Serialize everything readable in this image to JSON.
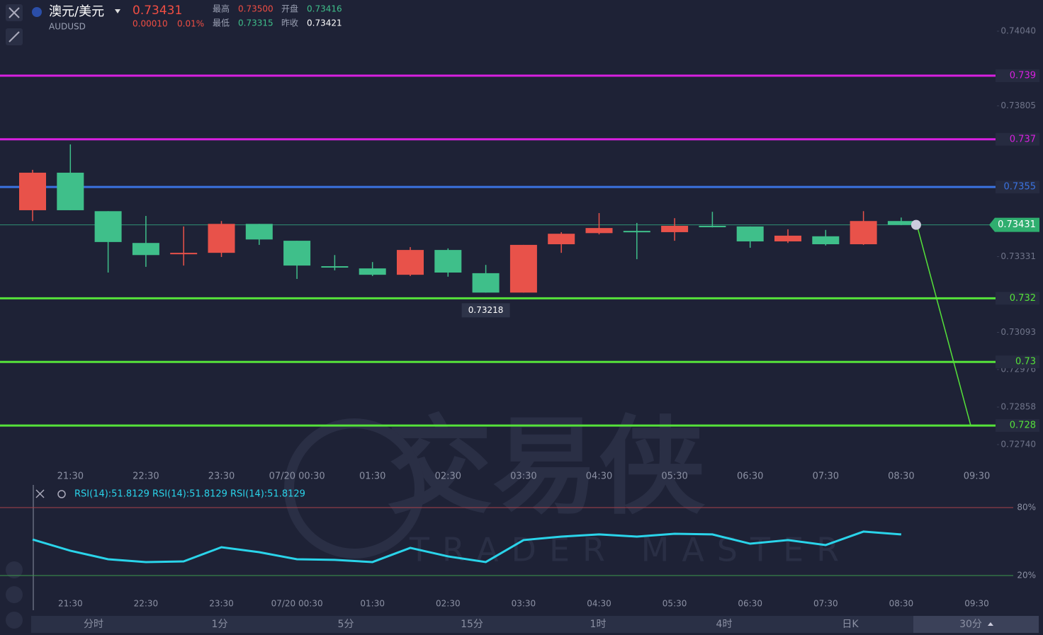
{
  "header": {
    "symbol_name": "澳元/美元",
    "symbol_code": "AUDUSD",
    "price": "0.73431",
    "change": "0.00010",
    "change_pct": "0.01%",
    "high_label": "最高",
    "high": "0.73500",
    "open_label": "开盘",
    "open": "0.73416",
    "low_label": "最低",
    "low": "0.73315",
    "prev_close_label": "昨收",
    "prev_close": "0.73421"
  },
  "watermark": {
    "cn": "交易侠",
    "en": "TRADER MASTER"
  },
  "chart_data": [
    {
      "type": "candlestick",
      "categories": [
        null,
        "21:30",
        null,
        "22:30",
        null,
        "23:30",
        null,
        "07/20 00:30",
        null,
        "01:30",
        null,
        "02:30",
        null,
        "03:30",
        null,
        "04:30",
        null,
        "05:30",
        null,
        "06:30",
        null,
        "07:30",
        null,
        "08:30",
        null,
        "09:30"
      ],
      "open": [
        0.73477,
        0.73595,
        0.73474,
        0.73374,
        0.73341,
        0.73343,
        0.73434,
        0.73381,
        0.73301,
        0.73294,
        0.73274,
        0.73352,
        0.73279,
        0.73218,
        0.7337,
        0.73405,
        0.73412,
        0.73408,
        0.73428,
        0.73426,
        0.73379,
        0.73395,
        0.7337,
        0.73443,
        null,
        null
      ],
      "high": [
        0.73604,
        0.73684,
        0.73474,
        0.73459,
        0.73426,
        0.73443,
        0.73434,
        0.73381,
        0.73336,
        0.73314,
        0.73361,
        0.73357,
        0.73305,
        0.73368,
        0.73408,
        0.73468,
        0.73437,
        0.73452,
        0.73472,
        0.73426,
        0.73417,
        0.73415,
        0.73474,
        0.73454,
        null,
        null
      ],
      "low": [
        0.73443,
        0.73477,
        0.73281,
        0.73299,
        0.73303,
        0.7333,
        0.73368,
        0.73261,
        0.73288,
        0.7327,
        0.7327,
        0.73268,
        0.73218,
        0.73218,
        0.73343,
        0.73401,
        0.73323,
        0.73381,
        0.73423,
        0.73359,
        0.73374,
        0.73366,
        0.73368,
        0.7343,
        null,
        null
      ],
      "close": [
        0.73595,
        0.73477,
        0.73377,
        0.73336,
        0.73343,
        0.73434,
        0.73385,
        0.73303,
        0.73297,
        0.73274,
        0.73352,
        0.73281,
        0.73218,
        0.73368,
        0.73403,
        0.73421,
        0.7341,
        0.73428,
        0.73426,
        0.73379,
        0.73397,
        0.7337,
        0.73443,
        0.73431,
        null,
        null
      ],
      "up_color": "#e8524a",
      "down_color": "#3fbf8a",
      "ylim": [
        0.7268,
        0.74138
      ],
      "yticks": [
        {
          "value": 0.7404,
          "label": "0.74040"
        },
        0.73805,
        0.73331,
        0.73093,
        0.72976,
        0.72858,
        {
          "value": 0.7274,
          "label": "0.72740"
        }
      ],
      "levels": [
        {
          "value": 0.739,
          "color": "#d820e0"
        },
        {
          "value": 0.737,
          "color": "#d820e0"
        },
        {
          "value": 0.7355,
          "color": "#3a72e0"
        },
        {
          "value": 0.732,
          "color": "#55e23a"
        },
        {
          "value": 0.73,
          "color": "#55e23a"
        },
        {
          "value": 0.728,
          "color": "#55e23a"
        }
      ],
      "last_price": 0.73431,
      "low_annotation": 0.73218
    },
    {
      "type": "line",
      "legend": [
        "RSI(14):51.8129",
        "RSI(14):51.8129",
        "RSI(14):51.8129"
      ],
      "categories": [
        null,
        "21:30",
        null,
        "22:30",
        null,
        "23:30",
        null,
        "07/20 00:30",
        null,
        "01:30",
        null,
        "02:30",
        null,
        "03:30",
        null,
        "04:30",
        null,
        "05:30",
        null,
        "06:30",
        null,
        "07:30",
        null,
        "08:30",
        null,
        "09:30"
      ],
      "series": [
        {
          "name": "RSI(14)",
          "color": "#2ad4ea",
          "values": [
            51.8,
            41.9,
            34.4,
            31.9,
            32.5,
            45,
            40.6,
            34.4,
            33.8,
            31.9,
            44.4,
            36.9,
            31.9,
            51.3,
            54.4,
            56.3,
            54.4,
            56.9,
            56.3,
            48.1,
            51.3,
            46.9,
            58.8,
            56.3,
            null,
            null
          ]
        }
      ],
      "ylim": [
        0,
        100
      ],
      "yticks": [
        {
          "value": 20,
          "label": "20%"
        },
        {
          "value": 80,
          "label": "80%"
        }
      ]
    }
  ],
  "timeframes": [
    "分时",
    "1分",
    "5分",
    "15分",
    "1时",
    "4时",
    "日K",
    "30分"
  ]
}
